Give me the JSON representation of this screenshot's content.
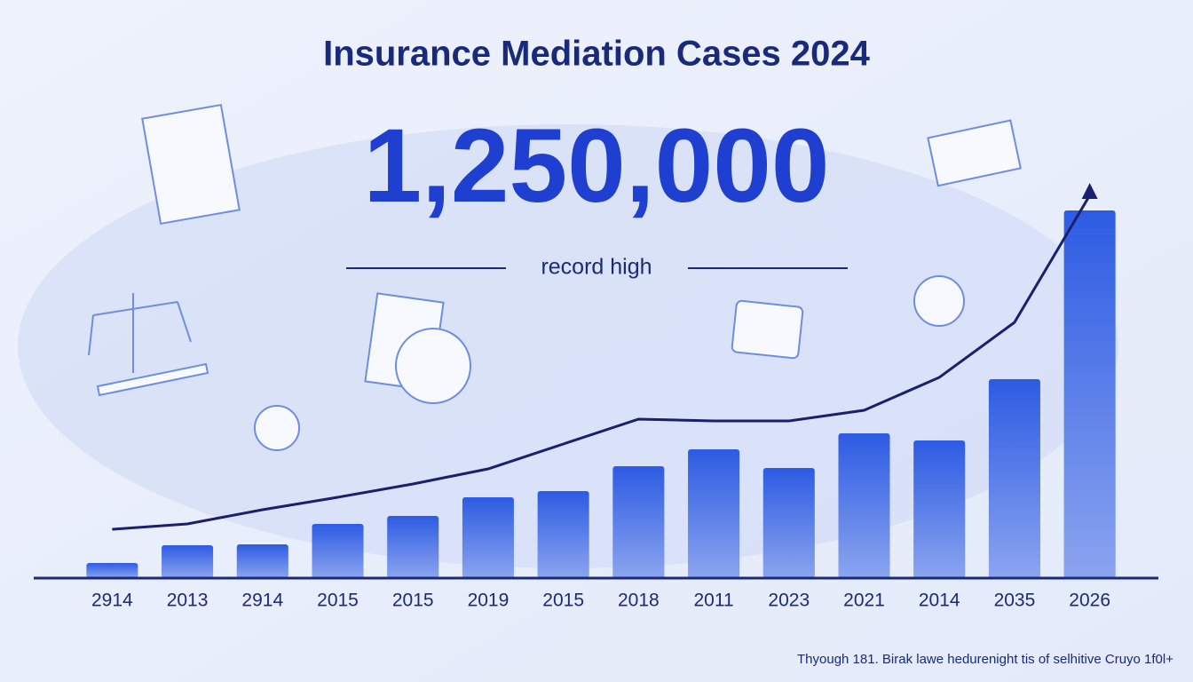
{
  "chart_data": {
    "type": "bar",
    "title": "Insurance Mediation Cases 2024",
    "headline": "1,250,000",
    "subheadline": "record high",
    "footnote": "Thyough 181. Birak lawe hedurenight tis of selhitive Cruyo 1f0l+",
    "categories": [
      "2914",
      "2013",
      "2914",
      "2015",
      "2015",
      "2019",
      "2015",
      "2018",
      "2011",
      "2023",
      "2021",
      "2014",
      "2035",
      "2026"
    ],
    "values": [
      17,
      37,
      38,
      61,
      70,
      91,
      98,
      126,
      145,
      124,
      163,
      155,
      224,
      414
    ],
    "color": "#2d5be3",
    "trend": {
      "values": [
        55,
        61,
        77,
        91,
        106,
        123,
        151,
        179,
        177,
        177,
        189,
        226,
        288,
        431
      ],
      "color": "#1a1f6e"
    },
    "ylim": [
      0,
      450
    ]
  }
}
